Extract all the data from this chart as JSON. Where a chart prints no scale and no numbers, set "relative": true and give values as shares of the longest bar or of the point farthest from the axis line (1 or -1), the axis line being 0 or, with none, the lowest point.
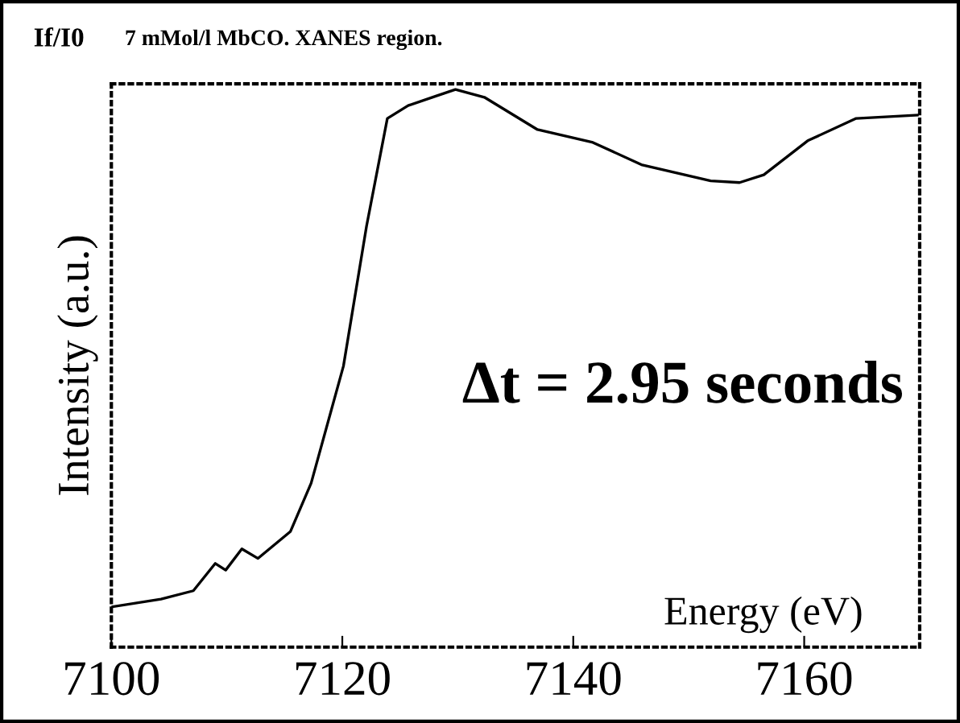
{
  "chart_data": {
    "type": "line",
    "title": "If/I0",
    "subtitle": "7 mMol/l MbCO. XANES region.",
    "xlabel": "Energy (eV)",
    "ylabel": "Intensity (a.u.)",
    "annotations": [
      "Δt = 2.95 seconds"
    ],
    "relative": true,
    "xlim": [
      7100,
      7170
    ],
    "xticks": [
      7100,
      7120,
      7140,
      7160
    ],
    "grid": false,
    "legend": false,
    "marker": "none",
    "line_style": "solid",
    "x": [
      7100,
      7104.3,
      7107.1,
      7109.0,
      7109.9,
      7111.3,
      7112.7,
      7115.5,
      7117.3,
      7120.1,
      7122.1,
      7123.9,
      7125.7,
      7128.1,
      7129.8,
      7132.3,
      7136.9,
      7141.7,
      7145.9,
      7151.9,
      7154.4,
      7156.5,
      7160.3,
      7164.5,
      7169.8
    ],
    "series": [
      {
        "color": "#000000",
        "values": [
          0.072,
          0.086,
          0.101,
          0.15,
          0.138,
          0.176,
          0.159,
          0.207,
          0.294,
          0.504,
          0.755,
          0.948,
          0.971,
          0.988,
          1.0,
          0.986,
          0.928,
          0.905,
          0.865,
          0.836,
          0.833,
          0.847,
          0.908,
          0.948,
          0.954
        ]
      }
    ]
  }
}
